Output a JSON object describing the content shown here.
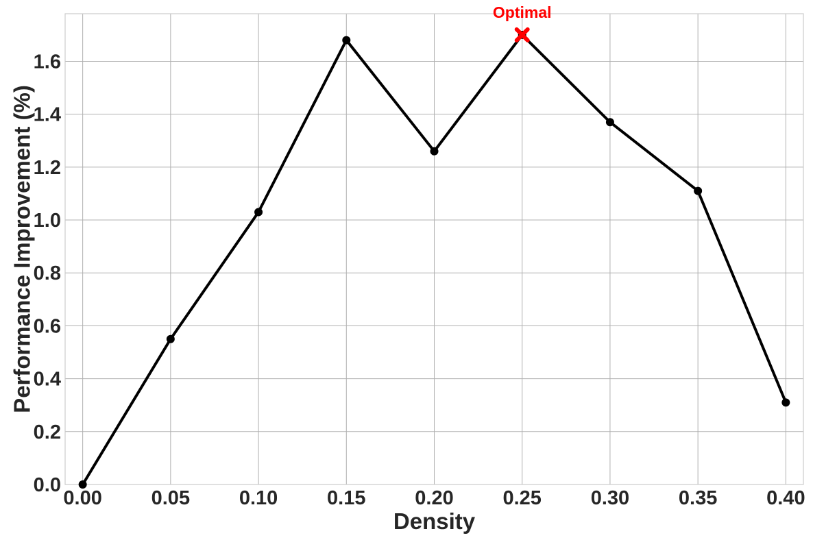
{
  "chart_data": {
    "type": "line",
    "title": "",
    "xlabel": "Density",
    "ylabel": "Performance Improvement (%)",
    "x": [
      0.0,
      0.05,
      0.1,
      0.15,
      0.2,
      0.25,
      0.3,
      0.35,
      0.4
    ],
    "series": [
      {
        "values": [
          0.0,
          0.55,
          1.03,
          1.68,
          1.26,
          1.7,
          1.37,
          1.11,
          0.31
        ],
        "color": "#000000"
      }
    ],
    "xlim": [
      -0.01,
      0.41
    ],
    "ylim": [
      0.0,
      1.78
    ],
    "xticks": [
      0.0,
      0.05,
      0.1,
      0.15,
      0.2,
      0.25,
      0.3,
      0.35,
      0.4
    ],
    "xtick_labels": [
      "0.00",
      "0.05",
      "0.10",
      "0.15",
      "0.20",
      "0.25",
      "0.30",
      "0.35",
      "0.40"
    ],
    "yticks": [
      0.0,
      0.2,
      0.4,
      0.6,
      0.8,
      1.0,
      1.2,
      1.4,
      1.6
    ],
    "ytick_labels": [
      "0.0",
      "0.2",
      "0.4",
      "0.6",
      "0.8",
      "1.0",
      "1.2",
      "1.4",
      "1.6"
    ],
    "grid": true,
    "annotation": {
      "text": "Optimal",
      "x": 0.25,
      "y": 1.7,
      "color": "#ff0000",
      "marker": "x-icon"
    }
  }
}
